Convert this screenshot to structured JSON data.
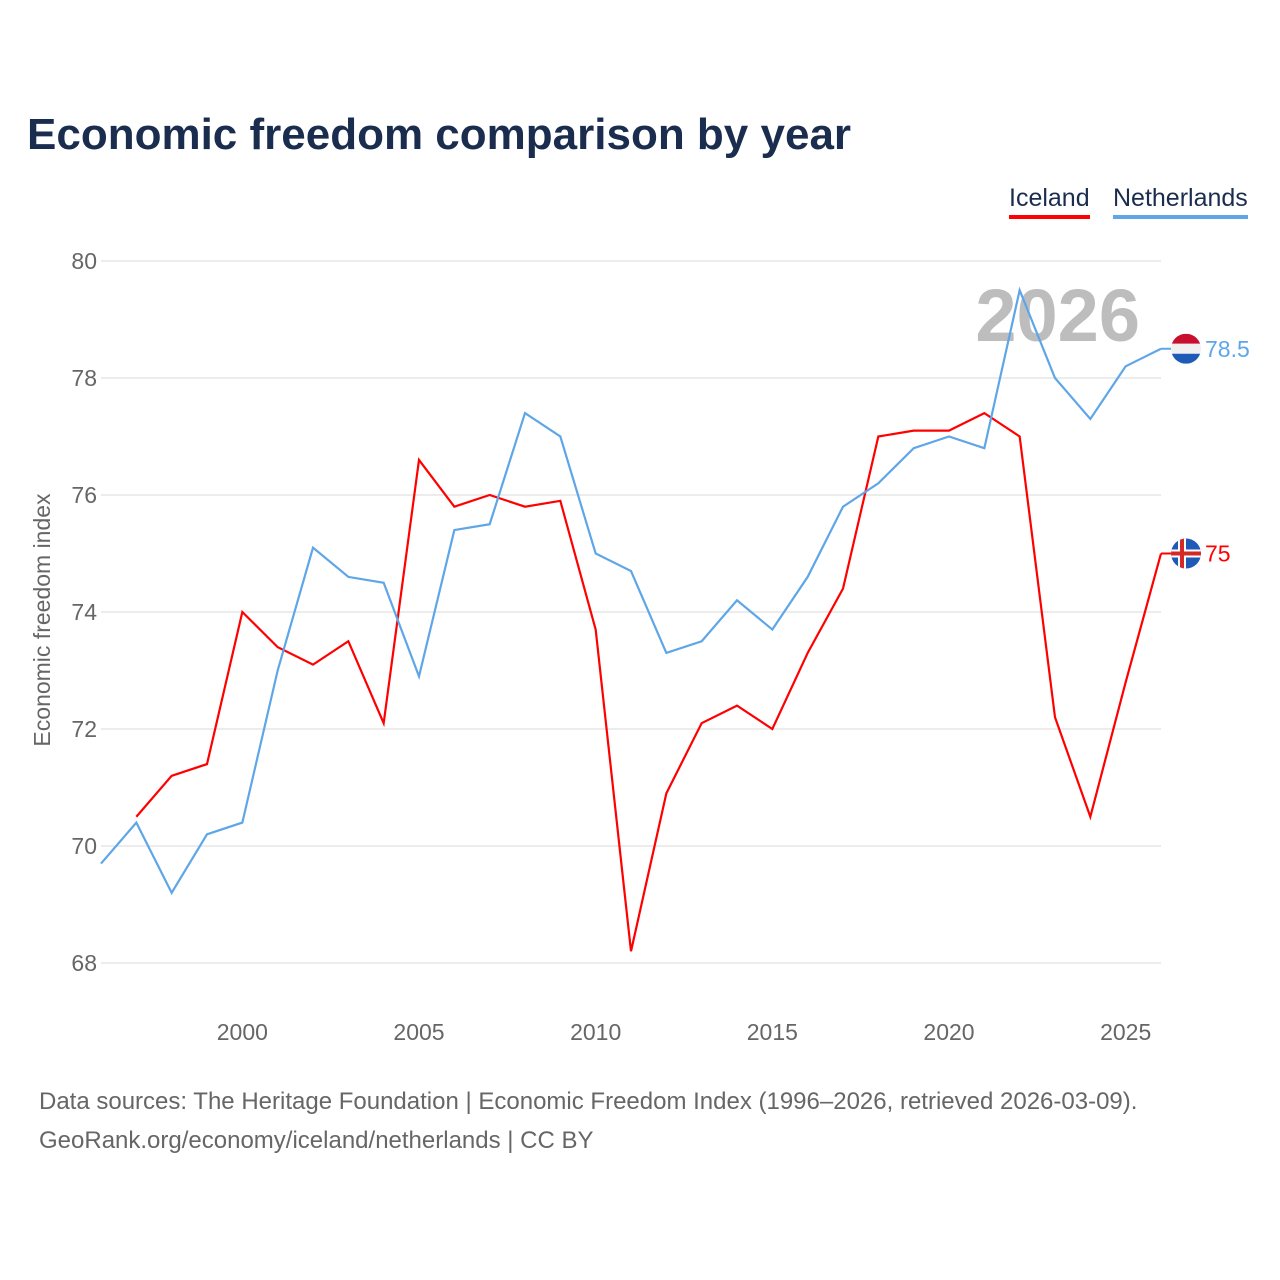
{
  "chart_data": {
    "type": "line",
    "title": "Economic freedom comparison by year",
    "ylabel": "Economic freedom index",
    "xlabel": "",
    "xlim": [
      1996,
      2026
    ],
    "ylim": [
      68,
      80
    ],
    "yticks": [
      68,
      70,
      72,
      74,
      76,
      78,
      80
    ],
    "xticks": [
      2000,
      2005,
      2010,
      2015,
      2020,
      2025
    ],
    "grid": true,
    "legend_position": "top-right",
    "watermark_year": "2026",
    "series": [
      {
        "name": "Iceland",
        "color": "#ff0000",
        "end_label": "75",
        "x": [
          1997,
          1998,
          1999,
          2000,
          2001,
          2002,
          2003,
          2004,
          2005,
          2006,
          2007,
          2008,
          2009,
          2010,
          2011,
          2012,
          2013,
          2014,
          2015,
          2016,
          2017,
          2018,
          2019,
          2020,
          2021,
          2022,
          2023,
          2024,
          2025,
          2026
        ],
        "values": [
          70.5,
          71.2,
          71.4,
          74.0,
          73.4,
          73.1,
          73.5,
          72.1,
          76.6,
          75.8,
          76.0,
          75.8,
          75.9,
          73.7,
          68.2,
          70.9,
          72.1,
          72.4,
          72.0,
          73.3,
          74.4,
          77.0,
          77.1,
          77.1,
          77.4,
          77.0,
          72.2,
          70.5,
          72.8,
          75.0
        ]
      },
      {
        "name": "Netherlands",
        "color": "#5ea6e8",
        "end_label": "78.5",
        "x": [
          1996,
          1997,
          1998,
          1999,
          2000,
          2001,
          2002,
          2003,
          2004,
          2005,
          2006,
          2007,
          2008,
          2009,
          2010,
          2011,
          2012,
          2013,
          2014,
          2015,
          2016,
          2017,
          2018,
          2019,
          2020,
          2021,
          2022,
          2023,
          2024,
          2025,
          2026
        ],
        "values": [
          69.7,
          70.4,
          69.2,
          70.2,
          70.4,
          73.0,
          75.1,
          74.6,
          74.5,
          72.9,
          75.4,
          75.5,
          77.4,
          77.0,
          75.0,
          74.7,
          73.3,
          73.5,
          74.2,
          73.7,
          74.6,
          75.8,
          76.2,
          76.8,
          77.0,
          76.8,
          79.5,
          78.0,
          77.3,
          78.2,
          78.5
        ]
      }
    ]
  },
  "legend": {
    "iceland": "Iceland",
    "netherlands": "Netherlands"
  },
  "footer": {
    "line1": "Data sources: The Heritage Foundation | Economic Freedom Index (1996–2026, retrieved 2026-03-09).",
    "line2": "GeoRank.org/economy/iceland/netherlands | CC BY"
  }
}
